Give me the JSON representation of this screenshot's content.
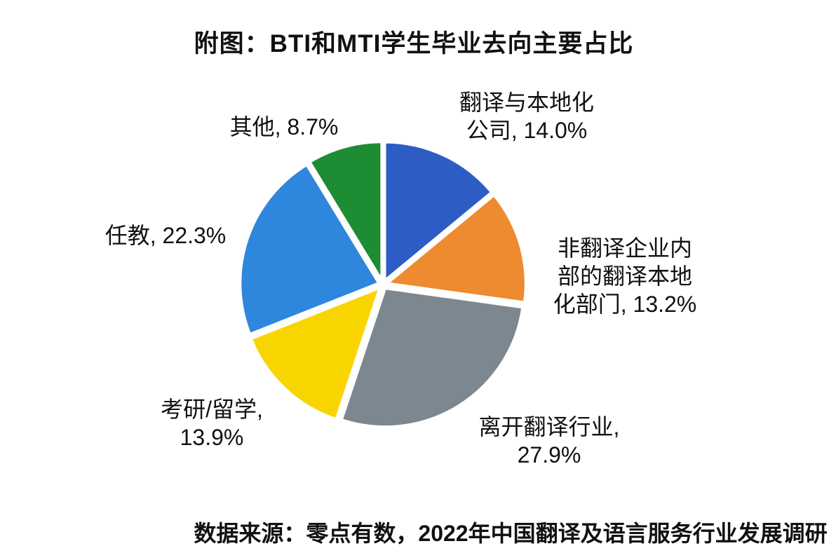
{
  "page": {
    "background_color": "#ffffff",
    "text_color": "#111111"
  },
  "chart_data": {
    "type": "pie",
    "title": "附图：BTI和MTI学生毕业去向主要占比",
    "source_note": "数据来源：零点有数，2022年中国翻译及语言服务行业发展调研",
    "start_angle_deg": 0,
    "direction": "clockwise",
    "gap_color": "#ffffff",
    "legend_position": "none",
    "labels_style": "outside-callouts",
    "slices": [
      {
        "name": "翻译与本地化公司",
        "value": 14.0,
        "color": "#2d5cc5",
        "label_lines": [
          "翻译与本地化",
          "公司, 14.0%"
        ]
      },
      {
        "name": "非翻译企业内部的翻译本地化部门",
        "value": 13.2,
        "color": "#ee8a30",
        "label_lines": [
          "非翻译企业内",
          "部的翻译本地",
          "化部门, 13.2%"
        ]
      },
      {
        "name": "离开翻译行业",
        "value": 27.9,
        "color": "#7d8790",
        "label_lines": [
          "离开翻译行业,",
          "27.9%"
        ]
      },
      {
        "name": "考研/留学",
        "value": 13.9,
        "color": "#f8d501",
        "label_lines": [
          "考研/留学,",
          "13.9%"
        ]
      },
      {
        "name": "任教",
        "value": 22.3,
        "color": "#2f86dd",
        "label_lines": [
          "任教, 22.3%"
        ]
      },
      {
        "name": "其他",
        "value": 8.7,
        "color": "#1e8c33",
        "label_lines": [
          "其他, 8.7%"
        ]
      }
    ]
  }
}
